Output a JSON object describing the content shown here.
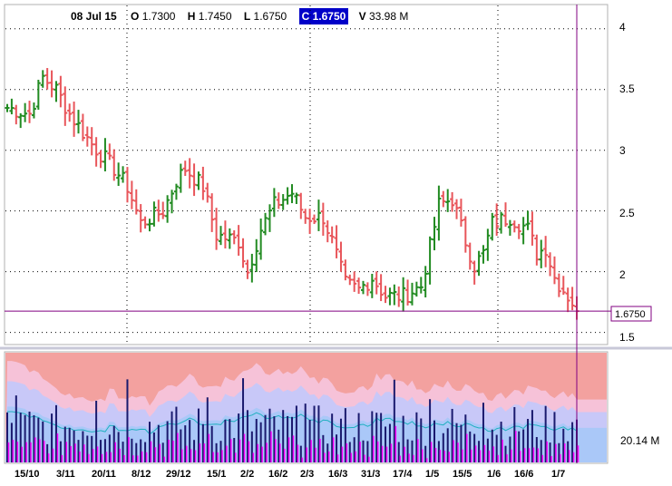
{
  "header": {
    "date": "08 Jul 15",
    "open_label": "O",
    "open_value": "1.7300",
    "high_label": "H",
    "high_value": "1.7450",
    "low_label": "L",
    "low_value": "1.6750",
    "close_label": "C",
    "close_value": "1.6750",
    "volume_label": "V",
    "volume_value": "33.98 M"
  },
  "colors": {
    "up": "#228b22",
    "down": "#e8555a",
    "volume_bar": "#1a1a6e",
    "volume_pink": "#ff00ff",
    "band_outer": "#f3a19f",
    "band_mid": "#c8c8f8",
    "band_inner": "#aac8f8",
    "cursor": "#800080"
  },
  "price_axis": {
    "ticks": [
      "4",
      "3.5",
      "3",
      "2.5",
      "2",
      "1.5"
    ],
    "last_price_label": "1.6750"
  },
  "volume_axis": {
    "label": "20.14 M"
  },
  "x_axis": {
    "labels": [
      "15/10",
      "3/11",
      "20/11",
      "8/12",
      "29/12",
      "15/1",
      "2/2",
      "16/2",
      "2/3",
      "16/3",
      "31/3",
      "17/4",
      "1/5",
      "15/5",
      "1/6",
      "16/6",
      "1/7"
    ]
  },
  "chart_data": [
    {
      "type": "ohlc",
      "ylim": [
        1.4,
        4.2
      ],
      "grid": true,
      "anchors": [
        [
          0,
          3.35
        ],
        [
          5,
          3.3
        ],
        [
          8,
          3.6
        ],
        [
          11,
          3.5
        ],
        [
          14,
          3.3
        ],
        [
          19,
          3.05
        ],
        [
          24,
          2.85
        ],
        [
          27,
          2.7
        ],
        [
          30,
          2.4
        ],
        [
          35,
          2.5
        ],
        [
          38,
          2.75
        ],
        [
          40,
          2.85
        ],
        [
          44,
          2.7
        ],
        [
          47,
          2.3
        ],
        [
          52,
          2.25
        ],
        [
          54,
          2.0
        ],
        [
          57,
          2.35
        ],
        [
          60,
          2.55
        ],
        [
          64,
          2.65
        ],
        [
          67,
          2.45
        ],
        [
          71,
          2.45
        ],
        [
          73,
          2.25
        ],
        [
          76,
          1.9
        ],
        [
          79,
          1.85
        ],
        [
          82,
          1.95
        ],
        [
          85,
          1.8
        ],
        [
          89,
          1.8
        ],
        [
          93,
          1.88
        ],
        [
          95,
          2.2
        ],
        [
          97,
          2.55
        ],
        [
          100,
          2.6
        ],
        [
          103,
          2.25
        ],
        [
          105,
          2.05
        ],
        [
          107,
          2.15
        ],
        [
          109,
          2.4
        ],
        [
          113,
          2.45
        ],
        [
          117,
          2.35
        ],
        [
          119,
          2.15
        ],
        [
          121,
          2.2
        ],
        [
          123,
          1.95
        ],
        [
          125,
          1.85
        ],
        [
          127,
          1.75
        ],
        [
          128,
          1.72
        ]
      ],
      "last_close": 1.675
    },
    {
      "type": "bar",
      "name": "Volume",
      "value_label": "20.14 M",
      "ylim": [
        0,
        80
      ]
    }
  ]
}
